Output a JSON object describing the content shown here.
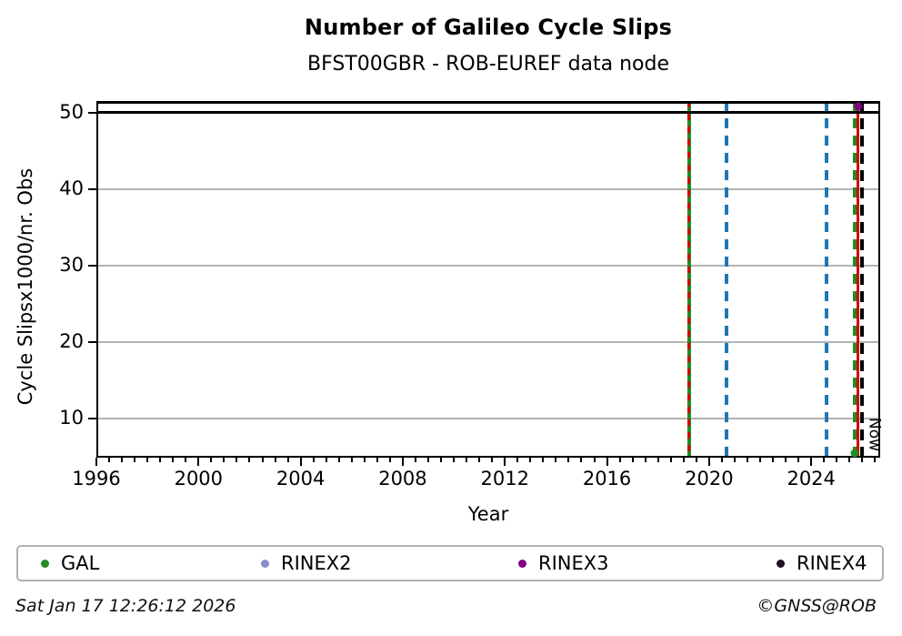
{
  "header": {
    "title": "Number of Galileo Cycle Slips",
    "subtitle": "BFST00GBR - ROB-EUREF data node"
  },
  "chart_data": {
    "type": "line",
    "title": "Number of Galileo Cycle Slips",
    "subtitle": "BFST00GBR - ROB-EUREF data node",
    "xlabel": "Year",
    "ylabel": "Cycle Slipsx1000/nr. Obs",
    "xlim": [
      1996,
      2026.7
    ],
    "ylim": [
      4.83,
      51.5
    ],
    "x_major_ticks": [
      1996,
      2000,
      2004,
      2008,
      2012,
      2016,
      2020,
      2024
    ],
    "x_minor_step": 0.5,
    "y_ticks": [
      10,
      20,
      30,
      40,
      50
    ],
    "grid": true,
    "grid_color": "#b3b3b3",
    "clip_line_y": 50,
    "vlines": [
      {
        "name": "gal-start-line",
        "x": 2019.22,
        "color": "#228B22",
        "style": "solid",
        "width": 4
      },
      {
        "name": "red-dashed-line-1",
        "x": 2019.22,
        "color": "#d40000",
        "style": "dashed",
        "width": 3,
        "dash": [
          7,
          7
        ]
      },
      {
        "name": "blue-dashed-line-1",
        "x": 2020.68,
        "color": "#1f77b4",
        "style": "dashed",
        "width": 4,
        "dash": [
          11,
          8
        ]
      },
      {
        "name": "blue-dashed-line-2",
        "x": 2024.6,
        "color": "#1f77b4",
        "style": "dashed",
        "width": 4,
        "dash": [
          11,
          8
        ]
      },
      {
        "name": "green-dashed-line",
        "x": 2025.72,
        "color": "#228B22",
        "style": "dashed",
        "width": 4,
        "dash": [
          11,
          8
        ]
      },
      {
        "name": "red-solid-line",
        "x": 2025.84,
        "color": "#d40000",
        "style": "solid",
        "width": 3
      },
      {
        "name": "black-dashed-line",
        "x": 2025.97,
        "color": "#000000",
        "style": "dashed",
        "width": 4,
        "dash": [
          12,
          7
        ]
      }
    ],
    "points": [
      {
        "name": "rinex3-point",
        "x": 2025.85,
        "y": 50.8,
        "color": "#800080"
      },
      {
        "name": "gal-point",
        "x": 2025.72,
        "y": 5.4,
        "color": "#228B22"
      }
    ],
    "now_marker": {
      "label": "Now",
      "x": 2026.05
    },
    "legend_position": "bottom",
    "legend": [
      {
        "label": "GAL",
        "color": "#228B22",
        "offset": 25
      },
      {
        "label": "RINEX2",
        "color": "#8a8ccd",
        "offset": 267
      },
      {
        "label": "RINEX3",
        "color": "#800080",
        "offset": 550
      },
      {
        "label": "RINEX4",
        "color": "#201020",
        "offset": 834
      }
    ]
  },
  "footer": {
    "timestamp": "Sat Jan 17 12:26:12 2026",
    "copyright": "©GNSS@ROB"
  }
}
